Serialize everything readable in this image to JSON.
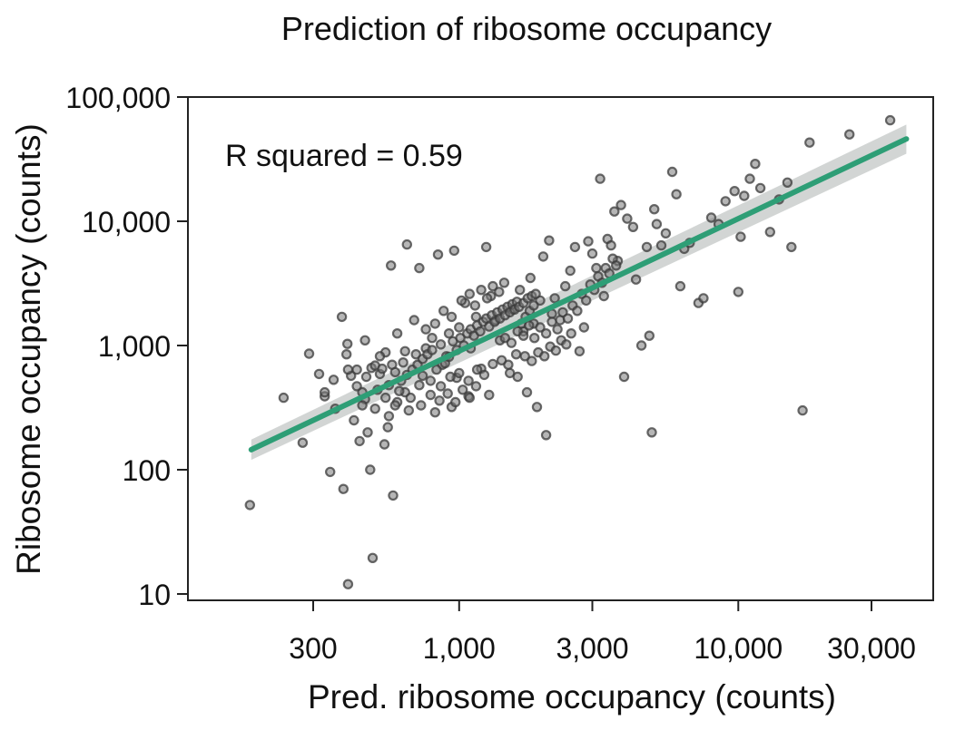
{
  "chart_data": {
    "type": "scatter",
    "title": "Prediction of ribosome occupancy",
    "xlabel": "Pred. ribosome occupancy (counts)",
    "ylabel": "Ribosome occupancy (counts)",
    "annotation": "R squared = 0.59",
    "x_scale": "log",
    "y_scale": "log",
    "xlim": [
      150,
      50000
    ],
    "ylim": [
      8,
      100000
    ],
    "x_ticks": [
      300,
      1000,
      3000,
      10000,
      30000
    ],
    "x_tick_labels": [
      "300",
      "1,000",
      "3,000",
      "10,000",
      "30,000"
    ],
    "y_ticks": [
      10,
      100,
      1000,
      10000,
      100000
    ],
    "y_tick_labels": [
      "10",
      "100",
      "1,000",
      "10,000",
      "100,000"
    ],
    "grid": false,
    "colors": {
      "points": "#3a3a3a",
      "fit_line": "#2e9e76",
      "confidence_band": "#c7cbc9"
    },
    "fit_line": {
      "x": [
        180,
        40000
      ],
      "y": [
        145,
        46000
      ]
    },
    "confidence_band": {
      "x": [
        180,
        40000
      ],
      "y_low": [
        120,
        35000
      ],
      "y_high": [
        175,
        60000
      ]
    },
    "points": [
      [
        178,
        52
      ],
      [
        235,
        380
      ],
      [
        275,
        165
      ],
      [
        290,
        860
      ],
      [
        315,
        590
      ],
      [
        330,
        390
      ],
      [
        345,
        96
      ],
      [
        355,
        530
      ],
      [
        380,
        1700
      ],
      [
        385,
        70
      ],
      [
        395,
        850
      ],
      [
        398,
        1030
      ],
      [
        400,
        12
      ],
      [
        410,
        570
      ],
      [
        430,
        640
      ],
      [
        440,
        170
      ],
      [
        450,
        420
      ],
      [
        460,
        370
      ],
      [
        470,
        200
      ],
      [
        480,
        100
      ],
      [
        490,
        19.5
      ],
      [
        485,
        660
      ],
      [
        500,
        310
      ],
      [
        520,
        590
      ],
      [
        540,
        160
      ],
      [
        545,
        880
      ],
      [
        555,
        220
      ],
      [
        570,
        4400
      ],
      [
        580,
        62
      ],
      [
        575,
        700
      ],
      [
        600,
        350
      ],
      [
        630,
        730
      ],
      [
        650,
        6500
      ],
      [
        660,
        300
      ],
      [
        700,
        850
      ],
      [
        720,
        4200
      ],
      [
        740,
        570
      ],
      [
        760,
        950
      ],
      [
        800,
        1150
      ],
      [
        820,
        290
      ],
      [
        840,
        5400
      ],
      [
        870,
        700
      ],
      [
        900,
        820
      ],
      [
        920,
        1250
      ],
      [
        940,
        320
      ],
      [
        960,
        5800
      ],
      [
        980,
        550
      ],
      [
        1000,
        1400
      ],
      [
        1050,
        2200
      ],
      [
        1080,
        390
      ],
      [
        1100,
        950
      ],
      [
        1150,
        1700
      ],
      [
        1200,
        650
      ],
      [
        1250,
        6200
      ],
      [
        1280,
        400
      ],
      [
        1300,
        2500
      ],
      [
        1350,
        1600
      ],
      [
        1400,
        1100
      ],
      [
        1450,
        3200
      ],
      [
        1500,
        700
      ],
      [
        1550,
        1950
      ],
      [
        1600,
        850
      ],
      [
        1650,
        2800
      ],
      [
        1700,
        1300
      ],
      [
        1750,
        420
      ],
      [
        1800,
        3500
      ],
      [
        1850,
        1500
      ],
      [
        1900,
        320
      ],
      [
        1950,
        2300
      ],
      [
        2000,
        5200
      ],
      [
        2050,
        190
      ],
      [
        2100,
        7000
      ],
      [
        2150,
        1800
      ],
      [
        2200,
        2400
      ],
      [
        2300,
        1600
      ],
      [
        2400,
        3000
      ],
      [
        2500,
        4000
      ],
      [
        2600,
        6200
      ],
      [
        2700,
        900
      ],
      [
        2800,
        1400
      ],
      [
        2900,
        6900
      ],
      [
        3000,
        5500
      ],
      [
        3100,
        4200
      ],
      [
        3200,
        22000
      ],
      [
        3300,
        2500
      ],
      [
        3400,
        7200
      ],
      [
        3500,
        6400
      ],
      [
        3600,
        12000
      ],
      [
        3700,
        4800
      ],
      [
        3800,
        13500
      ],
      [
        3900,
        560
      ],
      [
        4000,
        10500
      ],
      [
        4200,
        9000
      ],
      [
        4300,
        3400
      ],
      [
        4500,
        1000
      ],
      [
        4700,
        6200
      ],
      [
        4800,
        1200
      ],
      [
        4900,
        200
      ],
      [
        5000,
        12500
      ],
      [
        5100,
        9500
      ],
      [
        5300,
        6400
      ],
      [
        5500,
        8000
      ],
      [
        5800,
        25000
      ],
      [
        6000,
        16500
      ],
      [
        6200,
        3000
      ],
      [
        6400,
        6000
      ],
      [
        6700,
        6700
      ],
      [
        7200,
        2200
      ],
      [
        7500,
        2400
      ],
      [
        8000,
        10700
      ],
      [
        8500,
        9500
      ],
      [
        9000,
        14500
      ],
      [
        9700,
        17500
      ],
      [
        10000,
        2700
      ],
      [
        10200,
        7500
      ],
      [
        10500,
        16000
      ],
      [
        11000,
        22000
      ],
      [
        11500,
        29000
      ],
      [
        12000,
        18500
      ],
      [
        13000,
        8200
      ],
      [
        14000,
        15000
      ],
      [
        15000,
        20500
      ],
      [
        15500,
        6200
      ],
      [
        17000,
        300
      ],
      [
        18000,
        43000
      ],
      [
        25000,
        50000
      ],
      [
        35000,
        65000
      ],
      [
        400,
        640
      ],
      [
        430,
        470
      ],
      [
        465,
        560
      ],
      [
        500,
        690
      ],
      [
        530,
        650
      ],
      [
        560,
        480
      ],
      [
        590,
        610
      ],
      [
        620,
        520
      ],
      [
        650,
        580
      ],
      [
        680,
        640
      ],
      [
        710,
        700
      ],
      [
        740,
        780
      ],
      [
        770,
        850
      ],
      [
        800,
        920
      ],
      [
        830,
        640
      ],
      [
        860,
        1020
      ],
      [
        890,
        720
      ],
      [
        920,
        810
      ],
      [
        950,
        1080
      ],
      [
        980,
        920
      ],
      [
        1010,
        1150
      ],
      [
        1040,
        1000
      ],
      [
        1070,
        1250
      ],
      [
        1100,
        1350
      ],
      [
        1130,
        1200
      ],
      [
        1160,
        1450
      ],
      [
        1190,
        1300
      ],
      [
        1220,
        1550
      ],
      [
        1250,
        1650
      ],
      [
        1280,
        1420
      ],
      [
        1310,
        1750
      ],
      [
        1340,
        1550
      ],
      [
        1370,
        1850
      ],
      [
        1400,
        1650
      ],
      [
        1430,
        1950
      ],
      [
        1460,
        1750
      ],
      [
        1490,
        2050
      ],
      [
        1520,
        1850
      ],
      [
        1550,
        2150
      ],
      [
        1580,
        1950
      ],
      [
        1610,
        2250
      ],
      [
        1640,
        2050
      ],
      [
        1670,
        1500
      ],
      [
        1700,
        2200
      ],
      [
        1730,
        1700
      ],
      [
        1760,
        2400
      ],
      [
        1790,
        1900
      ],
      [
        1820,
        2500
      ],
      [
        1850,
        2100
      ],
      [
        1880,
        2600
      ],
      [
        460,
        1100
      ],
      [
        520,
        820
      ],
      [
        600,
        1250
      ],
      [
        640,
        900
      ],
      [
        690,
        1600
      ],
      [
        760,
        1350
      ],
      [
        820,
        1500
      ],
      [
        880,
        1900
      ],
      [
        940,
        1700
      ],
      [
        1020,
        2300
      ],
      [
        1090,
        2600
      ],
      [
        1140,
        2100
      ],
      [
        1200,
        2800
      ],
      [
        1260,
        2400
      ],
      [
        1320,
        3000
      ],
      [
        1390,
        2700
      ],
      [
        1460,
        1150
      ],
      [
        1540,
        1050
      ],
      [
        1620,
        1300
      ],
      [
        1700,
        1200
      ],
      [
        1780,
        1450
      ],
      [
        1860,
        1150
      ],
      [
        1950,
        1400
      ],
      [
        2050,
        1250
      ],
      [
        2150,
        1550
      ],
      [
        2250,
        1350
      ],
      [
        2350,
        1850
      ],
      [
        2450,
        1650
      ],
      [
        2550,
        2100
      ],
      [
        2650,
        1900
      ],
      [
        2750,
        2600
      ],
      [
        2850,
        2300
      ],
      [
        2950,
        3100
      ],
      [
        3050,
        2800
      ],
      [
        3150,
        3600
      ],
      [
        3250,
        3200
      ],
      [
        3350,
        4200
      ],
      [
        3450,
        3800
      ],
      [
        3550,
        5000
      ],
      [
        3650,
        4400
      ],
      [
        560,
        270
      ],
      [
        590,
        330
      ],
      [
        640,
        420
      ],
      [
        720,
        480
      ],
      [
        790,
        520
      ],
      [
        860,
        470
      ],
      [
        930,
        560
      ],
      [
        1000,
        600
      ],
      [
        1080,
        520
      ],
      [
        1160,
        640
      ],
      [
        1230,
        580
      ],
      [
        1320,
        710
      ],
      [
        1420,
        760
      ],
      [
        1520,
        600
      ],
      [
        1620,
        560
      ],
      [
        1720,
        820
      ],
      [
        1820,
        750
      ],
      [
        1920,
        880
      ],
      [
        2020,
        820
      ],
      [
        2120,
        980
      ],
      [
        2220,
        910
      ],
      [
        2320,
        1100
      ],
      [
        2420,
        1020
      ],
      [
        2520,
        1250
      ],
      [
        330,
        420
      ],
      [
        360,
        310
      ],
      [
        420,
        250
      ],
      [
        450,
        330
      ],
      [
        510,
        440
      ],
      [
        545,
        380
      ],
      [
        610,
        430
      ],
      [
        670,
        380
      ],
      [
        730,
        330
      ],
      [
        790,
        400
      ],
      [
        850,
        360
      ],
      [
        910,
        410
      ],
      [
        970,
        350
      ],
      [
        1030,
        440
      ],
      [
        1090,
        380
      ],
      [
        1150,
        470
      ]
    ]
  }
}
